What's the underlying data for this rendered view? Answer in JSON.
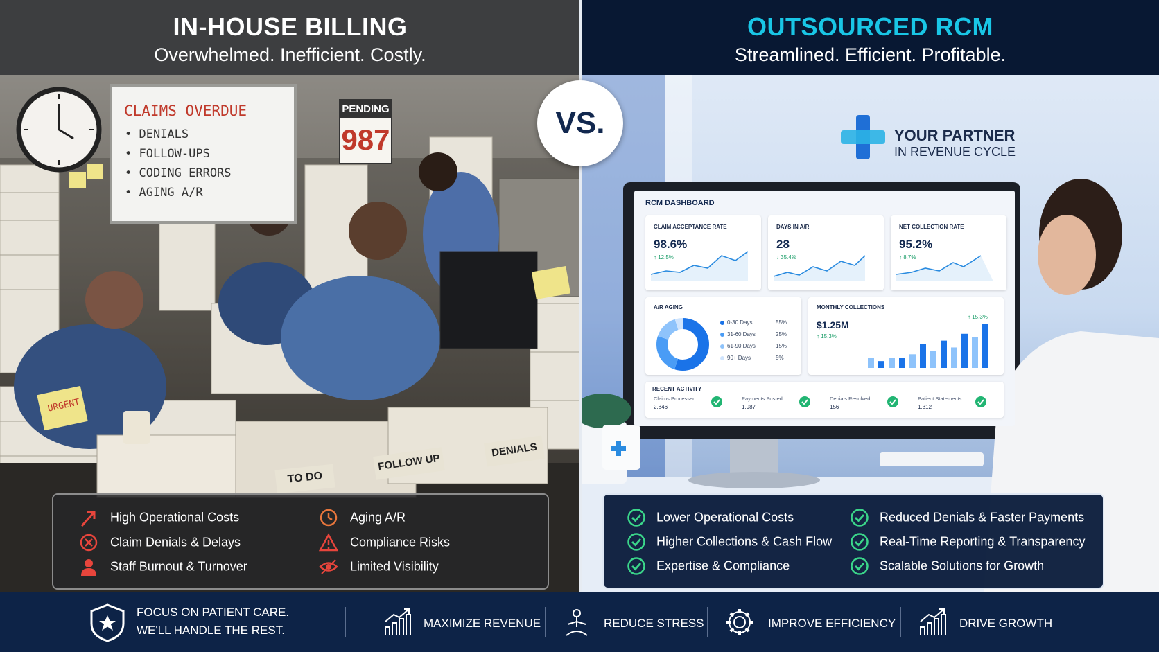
{
  "left": {
    "title": "IN-HOUSE BILLING",
    "subtitle": "Overwhelmed. Inefficient. Costly.",
    "scene": {
      "whiteboard": {
        "heading": "CLAIMS OVERDUE",
        "items": [
          "• DENIALS",
          "• FOLLOW-UPS",
          "• CODING ERRORS",
          "• AGING A/R"
        ]
      },
      "sign": {
        "label": "PENDING",
        "number": "987"
      },
      "notes": {
        "urgent": "URGENT",
        "to_do": "TO DO",
        "follow_up": "FOLLOW UP",
        "denials": "DENIALS"
      }
    },
    "issues": [
      "High Operational Costs",
      "Claim Denials & Delays",
      "Staff Burnout & Turnover",
      "Aging A/R",
      "Compliance Risks",
      "Limited Visibility"
    ]
  },
  "vs": "VS.",
  "right": {
    "title": "OUTSOURCED RCM",
    "subtitle": "Streamlined. Efficient. Profitable.",
    "logo": {
      "line1": "YOUR PARTNER",
      "line2": "IN REVENUE CYCLE"
    },
    "dashboard": {
      "title": "RCM DASHBOARD",
      "kpis": [
        {
          "label": "CLAIM ACCEPTANCE RATE",
          "value": "98.6%",
          "change": "↑ 12.5%"
        },
        {
          "label": "DAYS IN A/R",
          "value": "28",
          "change": "↓ 35.4%"
        },
        {
          "label": "NET COLLECTION RATE",
          "value": "95.2%",
          "change": "↑ 8.7%"
        }
      ],
      "aging": {
        "title": "A/R AGING",
        "rows": [
          {
            "label": "0-30 Days",
            "share": 55,
            "share_label": "55%"
          },
          {
            "label": "31-60 Days",
            "share": 25,
            "share_label": "25%"
          },
          {
            "label": "61-90 Days",
            "share": 15,
            "share_label": "15%"
          },
          {
            "label": "90+ Days",
            "share": 5,
            "share_label": "5%"
          }
        ]
      },
      "collections": {
        "title": "MONTHLY COLLECTIONS",
        "total": "$1.25M",
        "change": "↑ 15.3%",
        "top_change": "↑ 15.3%",
        "bars": [
          3,
          2,
          3,
          3,
          4,
          7,
          5,
          8,
          6,
          10,
          9,
          13
        ]
      },
      "activity": {
        "title": "RECENT ACTIVITY",
        "items": [
          {
            "label": "Claims Processed",
            "value": "2,846"
          },
          {
            "label": "Payments Posted",
            "value": "1,987"
          },
          {
            "label": "Denials Resolved",
            "value": "156"
          },
          {
            "label": "Patient Statements",
            "value": "1,312"
          }
        ]
      }
    },
    "benefits": [
      "Lower Operational Costs",
      "Higher Collections & Cash Flow",
      "Expertise & Compliance",
      "Reduced Denials & Faster Payments",
      "Real-Time Reporting & Transparency",
      "Scalable Solutions for Growth"
    ]
  },
  "footer": {
    "tagline": [
      "FOCUS ON PATIENT CARE.",
      "WE'LL HANDLE THE REST."
    ],
    "items": [
      "MAXIMIZE REVENUE",
      "REDUCE STRESS",
      "IMPROVE EFFICIENCY",
      "DRIVE GROWTH"
    ]
  }
}
